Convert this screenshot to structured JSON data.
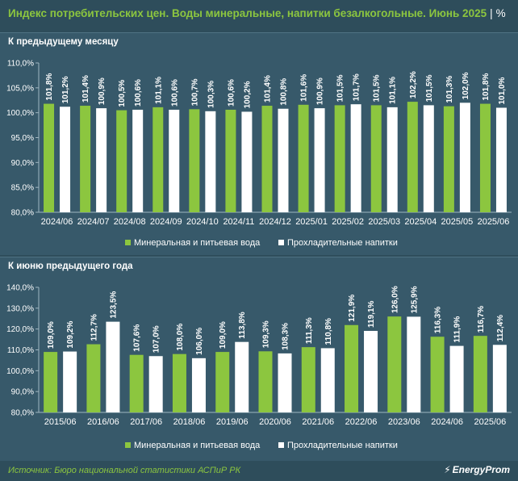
{
  "header": {
    "title": "Индекс потребительских цен. Воды минеральные, напитки безалкогольные. Июнь 2025",
    "unit": "%"
  },
  "colors": {
    "mineral": "#8cc63f",
    "soft": "#ffffff",
    "background": "#37596a",
    "header_bg": "#2e4d5b"
  },
  "chart_data": [
    {
      "type": "bar",
      "title": "К предыдущему месяцу",
      "categories": [
        "2024/06",
        "2024/07",
        "2024/08",
        "2024/09",
        "2024/10",
        "2024/11",
        "2024/12",
        "2025/01",
        "2025/02",
        "2025/03",
        "2025/04",
        "2025/05",
        "2025/06"
      ],
      "series": [
        {
          "name": "Минеральная и питьевая вода",
          "color": "#8cc63f",
          "values": [
            101.8,
            101.4,
            100.5,
            101.1,
            100.7,
            100.6,
            101.4,
            101.6,
            101.5,
            101.5,
            102.2,
            101.3,
            101.8
          ],
          "labels": [
            "101,8%",
            "101,4%",
            "100,5%",
            "101,1%",
            "100,7%",
            "100,6%",
            "101,4%",
            "101,6%",
            "101,5%",
            "101,5%",
            "102,2%",
            "101,3%",
            "101,8%"
          ]
        },
        {
          "name": "Прохладительные напитки",
          "color": "#ffffff",
          "values": [
            101.2,
            100.9,
            100.6,
            100.6,
            100.3,
            100.2,
            100.8,
            100.9,
            101.7,
            101.1,
            101.5,
            102.0,
            101.0
          ],
          "labels": [
            "101,2%",
            "100,9%",
            "100,6%",
            "100,6%",
            "100,3%",
            "100,2%",
            "100,8%",
            "100,9%",
            "101,7%",
            "101,1%",
            "101,5%",
            "102,0%",
            "101,0%"
          ]
        }
      ],
      "ylim": [
        80,
        110
      ],
      "yticks": [
        80,
        85,
        90,
        95,
        100,
        105,
        110
      ],
      "ytick_labels": [
        "80,0%",
        "85,0%",
        "90,0%",
        "95,0%",
        "100,0%",
        "105,0%",
        "110,0%"
      ],
      "legend": "bottom",
      "grid": false
    },
    {
      "type": "bar",
      "title": "К июню предыдущего года",
      "categories": [
        "2015/06",
        "2016/06",
        "2017/06",
        "2018/06",
        "2019/06",
        "2020/06",
        "2021/06",
        "2022/06",
        "2023/06",
        "2024/06",
        "2025/06"
      ],
      "series": [
        {
          "name": "Минеральная и питьевая вода",
          "color": "#8cc63f",
          "values": [
            109.0,
            112.7,
            107.6,
            108.0,
            109.0,
            109.3,
            111.3,
            121.9,
            126.0,
            116.3,
            116.7
          ],
          "labels": [
            "109,0%",
            "112,7%",
            "107,6%",
            "108,0%",
            "109,0%",
            "109,3%",
            "111,3%",
            "121,9%",
            "126,0%",
            "116,3%",
            "116,7%"
          ]
        },
        {
          "name": "Прохладительные напитки",
          "color": "#ffffff",
          "values": [
            109.2,
            123.5,
            107.0,
            106.0,
            113.8,
            108.3,
            110.8,
            119.1,
            125.9,
            111.9,
            112.4
          ],
          "labels": [
            "109,2%",
            "123,5%",
            "107,0%",
            "106,0%",
            "113,8%",
            "108,3%",
            "110,8%",
            "119,1%",
            "125,9%",
            "111,9%",
            "112,4%"
          ]
        }
      ],
      "ylim": [
        80,
        140
      ],
      "yticks": [
        80,
        90,
        100,
        110,
        120,
        130,
        140
      ],
      "ytick_labels": [
        "80,0%",
        "90,0%",
        "100,0%",
        "110,0%",
        "120,0%",
        "130,0%",
        "140,0%"
      ],
      "legend": "bottom",
      "grid": false
    }
  ],
  "footer": {
    "source": "Источник: Бюро национальной статистики АСПиР РК",
    "logo": "EnergyProm"
  }
}
